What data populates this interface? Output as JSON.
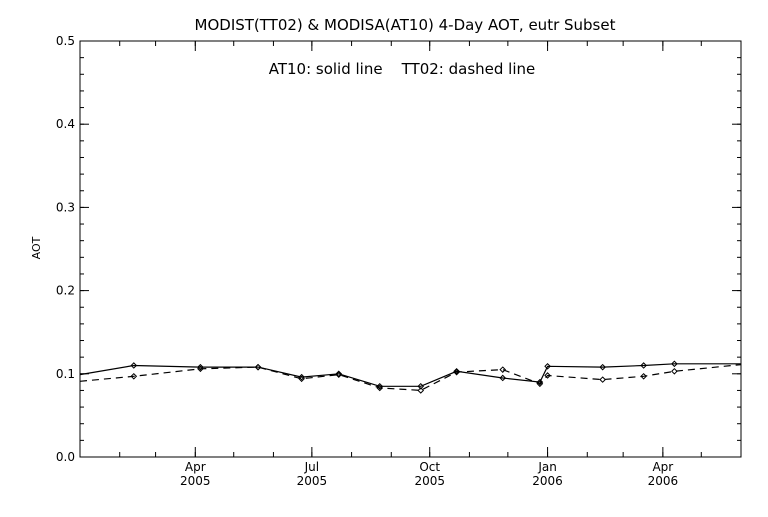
{
  "chart_data": {
    "type": "line",
    "title": "MODIST(TT02) & MODISA(AT10) 4-Day AOT, eutr Subset",
    "annotation": "AT10: solid line    TT02: dashed line",
    "ylabel": "AOT",
    "xlabel": "",
    "ylim": [
      0.0,
      0.5
    ],
    "xlim": [
      "2005-01-01",
      "2006-06-01"
    ],
    "yticks": [
      "0.0",
      "0.1",
      "0.2",
      "0.3",
      "0.4",
      "0.5"
    ],
    "xticks": [
      {
        "date": "2005-04-01",
        "month": "Apr",
        "year": "2005"
      },
      {
        "date": "2005-07-01",
        "month": "Jul",
        "year": "2005"
      },
      {
        "date": "2005-10-01",
        "month": "Oct",
        "year": "2005"
      },
      {
        "date": "2006-01-01",
        "month": "Jan",
        "year": "2006"
      },
      {
        "date": "2006-04-01",
        "month": "Apr",
        "year": "2006"
      }
    ],
    "grid": false,
    "series": [
      {
        "name": "AT10",
        "style": "solid",
        "color": "#000000",
        "points": [
          {
            "x": "2005-01-01",
            "y": 0.099
          },
          {
            "x": "2005-02-12",
            "y": 0.11
          },
          {
            "x": "2005-04-05",
            "y": 0.108
          },
          {
            "x": "2005-05-20",
            "y": 0.108
          },
          {
            "x": "2005-06-23",
            "y": 0.096
          },
          {
            "x": "2005-07-22",
            "y": 0.1
          },
          {
            "x": "2005-08-23",
            "y": 0.085
          },
          {
            "x": "2005-09-24",
            "y": 0.085
          },
          {
            "x": "2005-10-22",
            "y": 0.103
          },
          {
            "x": "2005-11-27",
            "y": 0.095
          },
          {
            "x": "2005-12-26",
            "y": 0.09
          },
          {
            "x": "2006-01-01",
            "y": 0.109
          },
          {
            "x": "2006-02-13",
            "y": 0.108
          },
          {
            "x": "2006-03-17",
            "y": 0.11
          },
          {
            "x": "2006-04-10",
            "y": 0.112
          },
          {
            "x": "2006-06-01",
            "y": 0.112
          }
        ]
      },
      {
        "name": "TT02",
        "style": "dashed",
        "color": "#000000",
        "points": [
          {
            "x": "2005-01-01",
            "y": 0.091
          },
          {
            "x": "2005-02-12",
            "y": 0.097
          },
          {
            "x": "2005-04-05",
            "y": 0.106
          },
          {
            "x": "2005-05-20",
            "y": 0.108
          },
          {
            "x": "2005-06-23",
            "y": 0.094
          },
          {
            "x": "2005-07-22",
            "y": 0.099
          },
          {
            "x": "2005-08-23",
            "y": 0.083
          },
          {
            "x": "2005-09-24",
            "y": 0.08
          },
          {
            "x": "2005-10-22",
            "y": 0.102
          },
          {
            "x": "2005-11-27",
            "y": 0.105
          },
          {
            "x": "2005-12-26",
            "y": 0.088
          },
          {
            "x": "2006-01-01",
            "y": 0.098
          },
          {
            "x": "2006-02-13",
            "y": 0.093
          },
          {
            "x": "2006-03-17",
            "y": 0.097
          },
          {
            "x": "2006-04-10",
            "y": 0.103
          },
          {
            "x": "2006-06-01",
            "y": 0.111
          }
        ]
      }
    ]
  }
}
